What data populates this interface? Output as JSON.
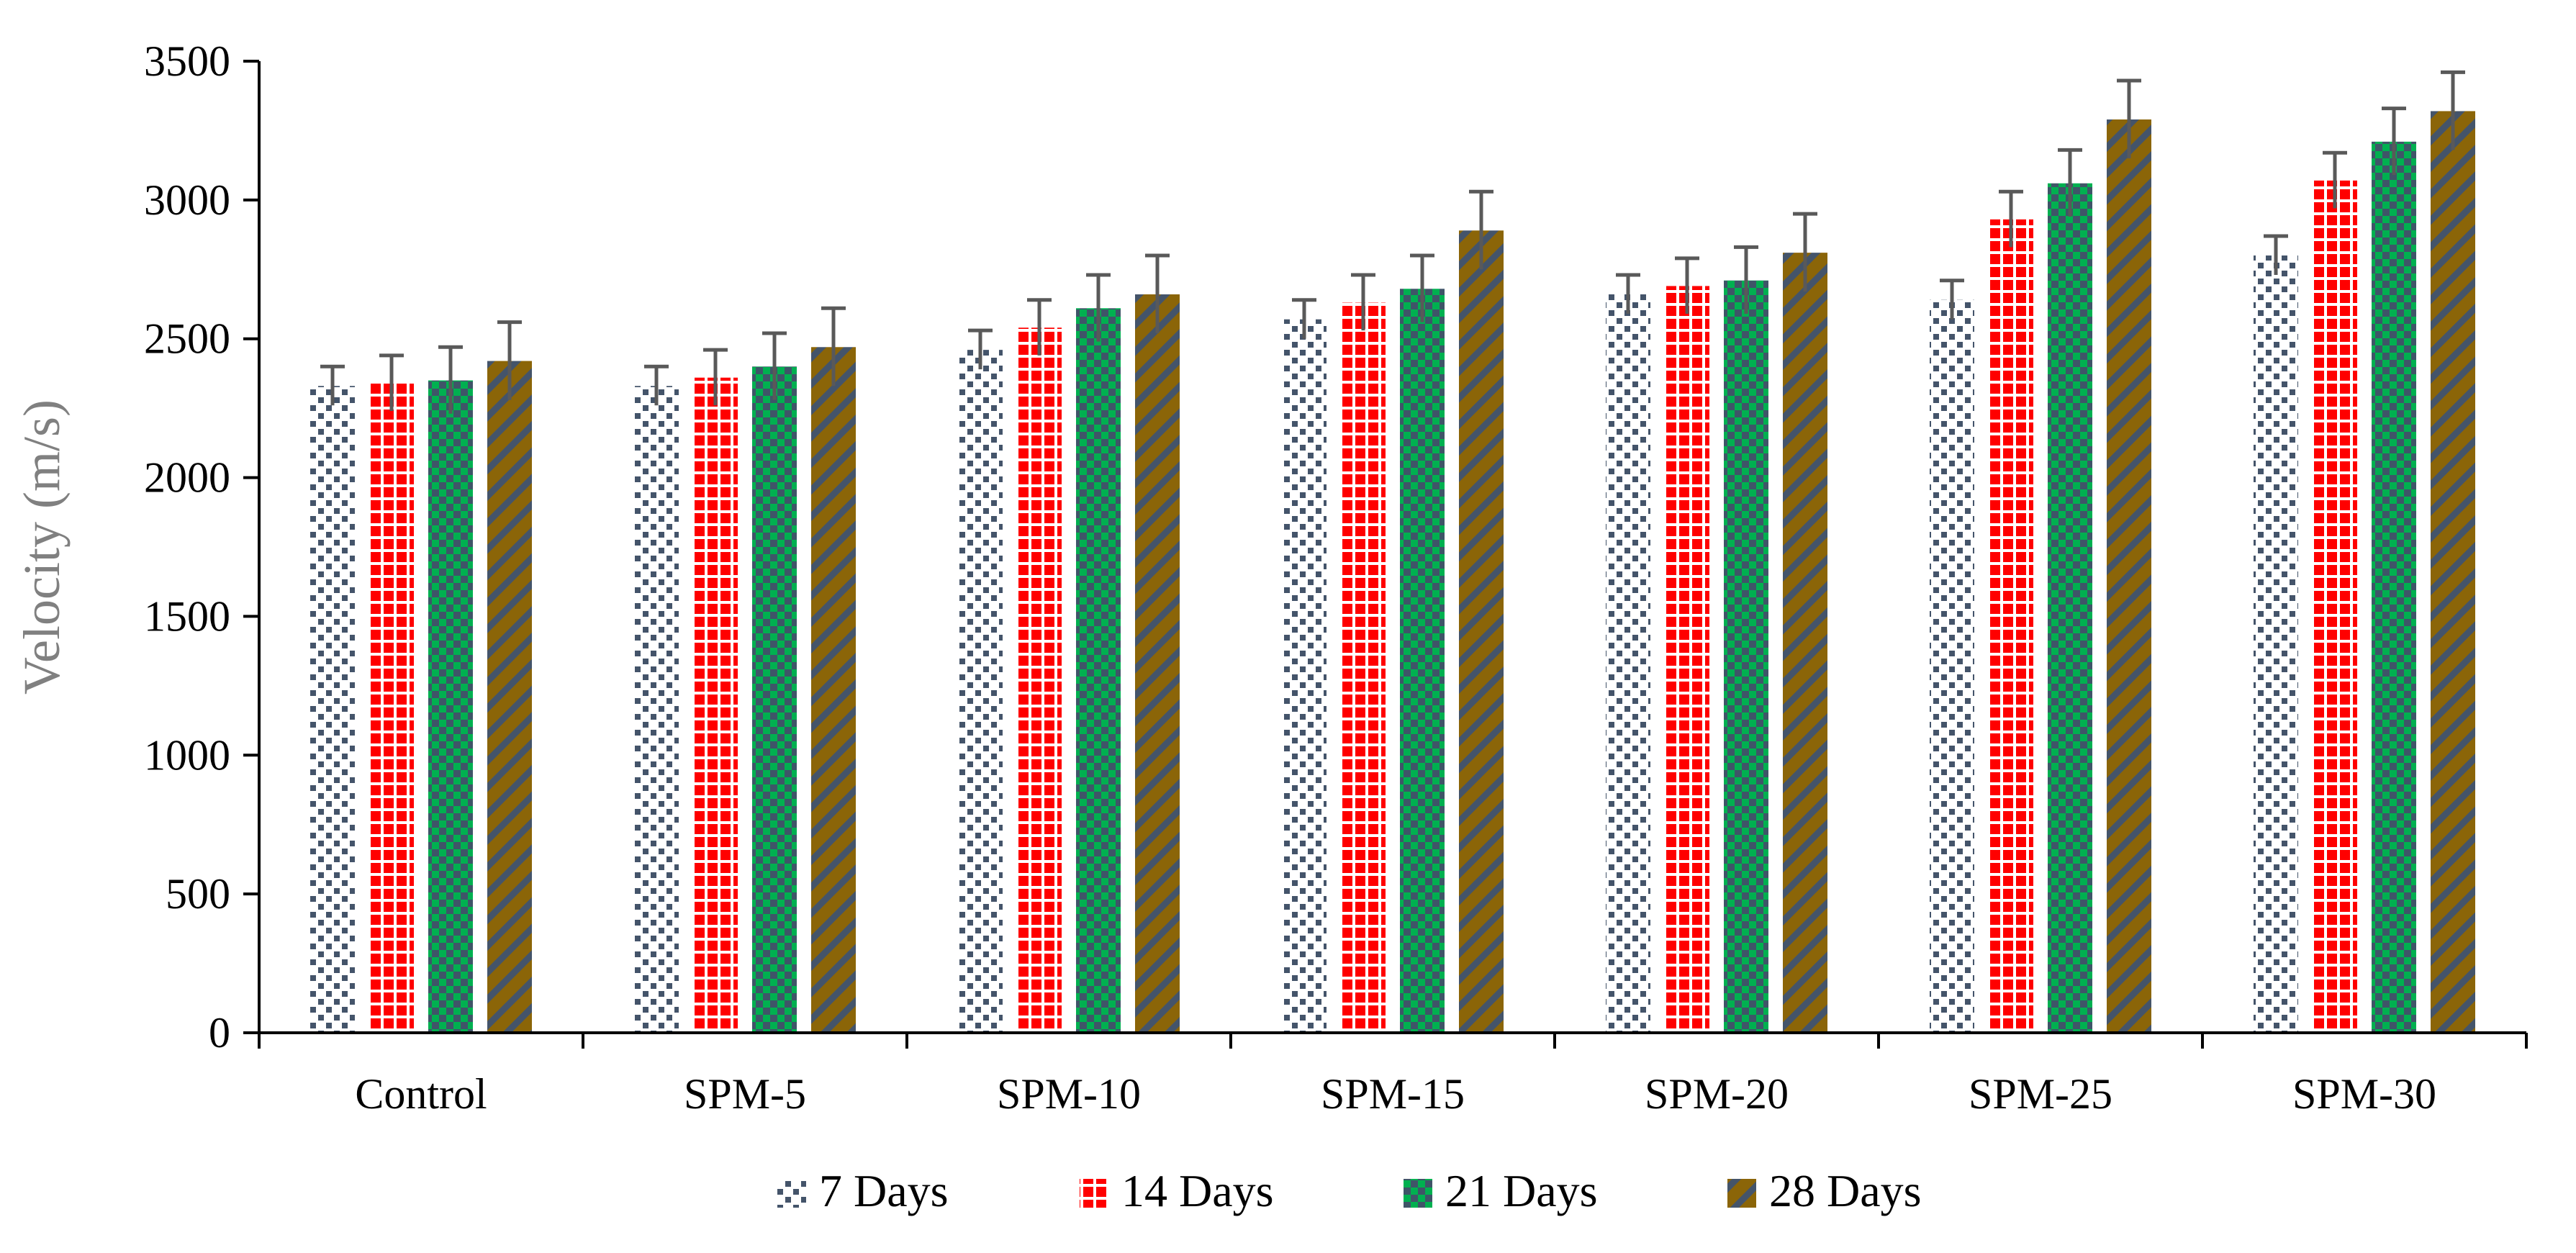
{
  "chart_data": {
    "type": "bar",
    "title": "",
    "xlabel": "",
    "ylabel": "Velocity (m/s)",
    "ylim": [
      0,
      3500
    ],
    "yticks": [
      0,
      500,
      1000,
      1500,
      2000,
      2500,
      3000,
      3500
    ],
    "grid": false,
    "legend_position": "bottom",
    "categories": [
      "Control",
      "SPM-5",
      "SPM-10",
      "SPM-15",
      "SPM-20",
      "SPM-25",
      "SPM-30"
    ],
    "series": [
      {
        "name": "7 Days",
        "pattern": "dots",
        "color": "#44546A",
        "values": [
          2330,
          2330,
          2460,
          2570,
          2660,
          2640,
          2800
        ],
        "errors": [
          70,
          70,
          70,
          70,
          70,
          70,
          70
        ]
      },
      {
        "name": "14 Days",
        "pattern": "grid",
        "color": "#FF0000",
        "values": [
          2340,
          2360,
          2540,
          2630,
          2690,
          2930,
          3070
        ],
        "errors": [
          100,
          100,
          100,
          100,
          100,
          100,
          100
        ]
      },
      {
        "name": "21 Days",
        "pattern": "checker",
        "color": "#00B050",
        "values": [
          2350,
          2400,
          2610,
          2680,
          2710,
          3060,
          3210
        ],
        "errors": [
          120,
          120,
          120,
          120,
          120,
          120,
          120
        ]
      },
      {
        "name": "28 Days",
        "pattern": "diagonal",
        "color": "#8B6508",
        "values": [
          2420,
          2470,
          2660,
          2890,
          2810,
          3290,
          3320
        ],
        "errors": [
          140,
          140,
          140,
          140,
          140,
          140,
          140
        ]
      }
    ]
  }
}
